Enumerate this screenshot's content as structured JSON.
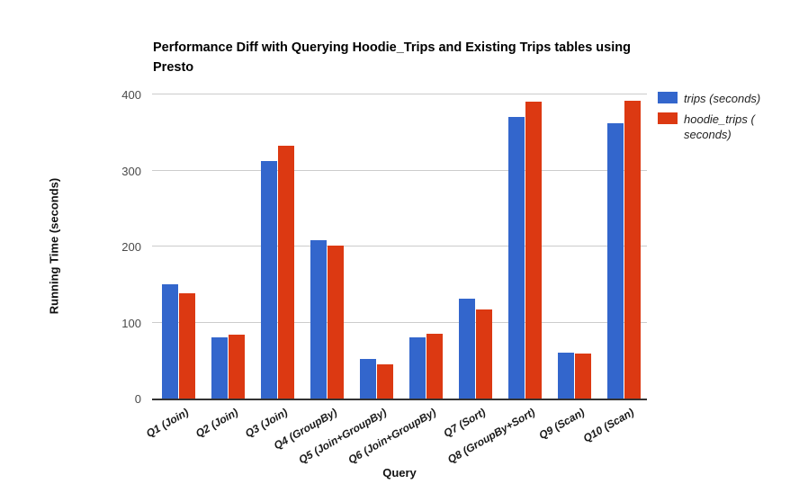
{
  "chart_data": {
    "type": "bar",
    "title": "Performance Diff with Querying Hoodie_Trips and Existing Trips tables using Presto",
    "xlabel": "Query",
    "ylabel": "Running Time (seconds)",
    "categories": [
      "Q1 (Join)",
      "Q2 (Join)",
      "Q3 (Join)",
      "Q4 (GroupBy)",
      "Q5 (Join+GroupBy)",
      "Q6 (Join+GroupBy)",
      "Q7 (Sort)",
      "Q8 (GroupBy+Sort)",
      "Q9 (Scan)",
      "Q10 (Scan)"
    ],
    "series": [
      {
        "name": "trips (seconds)",
        "color": "#3366CC",
        "values": [
          150,
          81,
          313,
          208,
          52,
          81,
          131,
          371,
          60,
          362
        ]
      },
      {
        "name": "hoodie_trips ( seconds)",
        "color": "#DC3912",
        "values": [
          139,
          84,
          332,
          201,
          45,
          85,
          117,
          390,
          59,
          392
        ]
      }
    ],
    "ylim": [
      0,
      400
    ],
    "yticks": [
      0,
      100,
      200,
      300,
      400
    ],
    "grid": true,
    "legend_position": "right",
    "gridline_color": "#cccccc",
    "axis_line_color": "#333333"
  }
}
